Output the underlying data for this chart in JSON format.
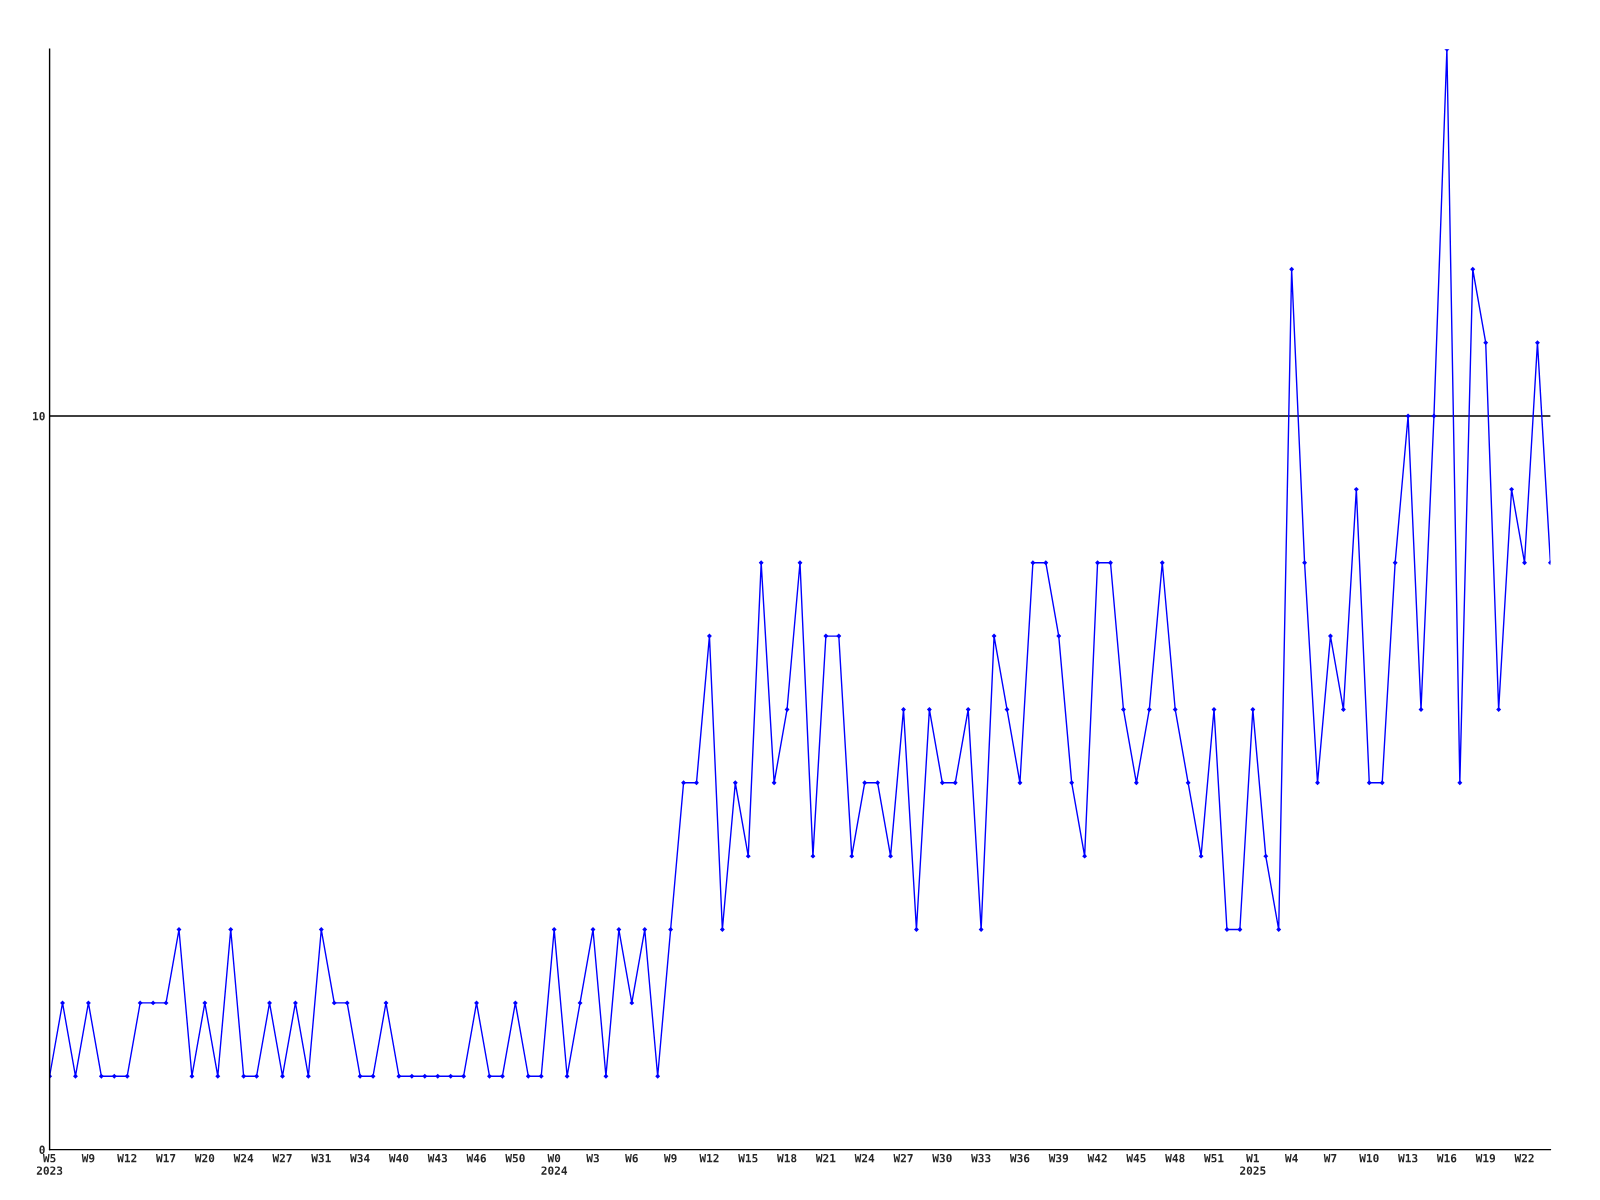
{
  "chart_data": {
    "type": "line",
    "categories": [
      "W5\n2023",
      null,
      null,
      "W9",
      null,
      null,
      "W12",
      null,
      null,
      "W17",
      null,
      null,
      "W20",
      null,
      null,
      "W24",
      null,
      null,
      "W27",
      null,
      null,
      "W31",
      null,
      null,
      "W34",
      null,
      null,
      "W40",
      null,
      null,
      "W43",
      null,
      null,
      "W46",
      null,
      null,
      "W50",
      null,
      null,
      "W0\n2024",
      null,
      null,
      "W3",
      null,
      null,
      "W6",
      null,
      null,
      "W9",
      null,
      null,
      "W12",
      null,
      null,
      "W15",
      null,
      null,
      "W18",
      null,
      null,
      "W21",
      null,
      null,
      "W24",
      null,
      null,
      "W27",
      null,
      null,
      "W30",
      null,
      null,
      "W33",
      null,
      null,
      "W36",
      null,
      null,
      "W39",
      null,
      null,
      "W42",
      null,
      null,
      "W45",
      null,
      null,
      "W48",
      null,
      null,
      "W51",
      null,
      null,
      "W1\n2025",
      null,
      null,
      "W4",
      null,
      null,
      "W7",
      null,
      null,
      "W10",
      null,
      null,
      "W13",
      null,
      null,
      "W16",
      null,
      null,
      "W19",
      null,
      null,
      "W22",
      null,
      null
    ],
    "series": [
      {
        "color": "#0000ff",
        "values": [
          1,
          2,
          1,
          2,
          1,
          1,
          1,
          2,
          2,
          2,
          3,
          1,
          2,
          1,
          3,
          1,
          1,
          2,
          1,
          2,
          1,
          3,
          2,
          2,
          1,
          1,
          2,
          1,
          1,
          1,
          1,
          1,
          1,
          2,
          1,
          1,
          2,
          1,
          1,
          3,
          1,
          2,
          3,
          1,
          3,
          2,
          3,
          1,
          3,
          5,
          5,
          7,
          3,
          5,
          4,
          8,
          5,
          6,
          8,
          4,
          7,
          7,
          4,
          5,
          5,
          4,
          6,
          3,
          6,
          5,
          5,
          6,
          3,
          7,
          6,
          5,
          8,
          8,
          7,
          5,
          4,
          8,
          8,
          6,
          5,
          6,
          8,
          6,
          5,
          4,
          6,
          3,
          3,
          6,
          4,
          3,
          12,
          8,
          5,
          7,
          6,
          9,
          5,
          5,
          8,
          10,
          6,
          10,
          15,
          5,
          12,
          11,
          6,
          9,
          8,
          11,
          8
        ]
      }
    ],
    "ylim": [
      0,
      15
    ],
    "yticks": [
      0,
      10
    ],
    "grid": "y",
    "marker": "diamond",
    "line_style": "solid"
  }
}
